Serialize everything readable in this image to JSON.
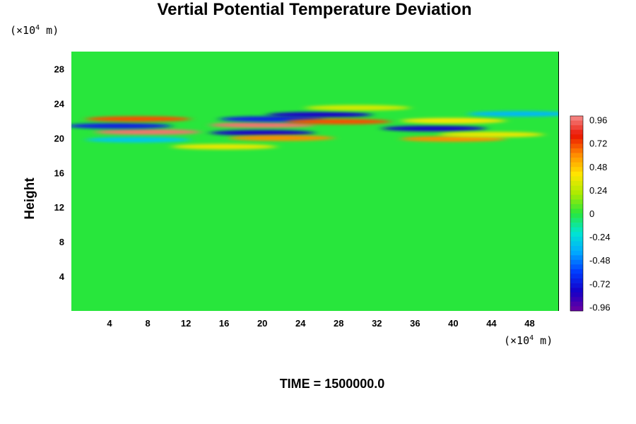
{
  "chart_data": {
    "type": "heatmap",
    "title": "Vertial Potential Temperature Deviation",
    "ylabel": "Height",
    "x_unit_prefix": "(×10",
    "x_unit_exp": "4",
    "x_unit_suffix": " m)",
    "y_unit_prefix": "(×10",
    "y_unit_exp": "4",
    "y_unit_suffix": " m)",
    "footer": "TIME = 1500000.0",
    "x_ticks": [
      4,
      8,
      12,
      16,
      20,
      24,
      28,
      32,
      36,
      40,
      44,
      48
    ],
    "y_ticks": [
      4,
      8,
      12,
      16,
      20,
      24,
      28
    ],
    "xlim": [
      0,
      51
    ],
    "ylim": [
      0,
      30
    ],
    "colorbar": {
      "ticks": [
        "0.96",
        "0.72",
        "0.48",
        "0.24",
        "0",
        "-0.24",
        "-0.48",
        "-0.72",
        "-0.96"
      ],
      "range": [
        -1.0,
        1.0
      ]
    },
    "background_value": 0,
    "features": [
      {
        "x": 8,
        "y": 20.7,
        "value": 0.96
      },
      {
        "x": 5,
        "y": 21.4,
        "value": -0.7
      },
      {
        "x": 7,
        "y": 22.2,
        "value": 0.7
      },
      {
        "x": 7,
        "y": 19.8,
        "value": -0.3
      },
      {
        "x": 20,
        "y": 21.5,
        "value": 0.96
      },
      {
        "x": 20,
        "y": 20.6,
        "value": -0.8
      },
      {
        "x": 21,
        "y": 22.2,
        "value": -0.7
      },
      {
        "x": 26,
        "y": 22.7,
        "value": -0.8
      },
      {
        "x": 28,
        "y": 21.9,
        "value": 0.7
      },
      {
        "x": 22,
        "y": 20.0,
        "value": 0.6
      },
      {
        "x": 38,
        "y": 21.1,
        "value": -0.8
      },
      {
        "x": 40,
        "y": 19.9,
        "value": 0.6
      },
      {
        "x": 40,
        "y": 22.0,
        "value": 0.4
      },
      {
        "x": 47,
        "y": 22.8,
        "value": -0.35
      },
      {
        "x": 44,
        "y": 20.4,
        "value": 0.35
      },
      {
        "x": 16,
        "y": 19.0,
        "value": 0.35
      },
      {
        "x": 30,
        "y": 23.5,
        "value": 0.3
      }
    ]
  }
}
